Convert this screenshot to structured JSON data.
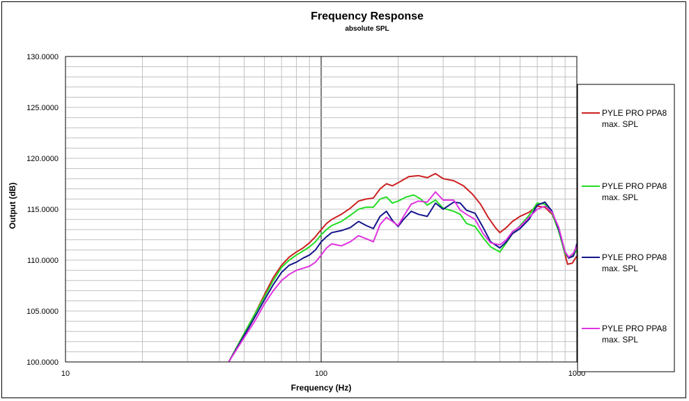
{
  "chart_data": {
    "type": "line",
    "title": "Frequency Response",
    "subtitle": "absolute SPL",
    "xlabel": "Frequency (Hz)",
    "ylabel": "Output (dB)",
    "x_scale": "log",
    "xlim": [
      10,
      1000
    ],
    "ylim": [
      100,
      130
    ],
    "x_ticks": [
      {
        "value": 10,
        "label": "10"
      },
      {
        "value": 100,
        "label": "100"
      },
      {
        "value": 1000,
        "label": "1000"
      }
    ],
    "y_ticks": [
      {
        "value": 100,
        "label": "100.0000"
      },
      {
        "value": 105,
        "label": "105.0000"
      },
      {
        "value": 110,
        "label": "110.0000"
      },
      {
        "value": 115,
        "label": "115.0000"
      },
      {
        "value": 120,
        "label": "120.0000"
      },
      {
        "value": 125,
        "label": "125.0000"
      },
      {
        "value": 130,
        "label": "130.0000"
      }
    ],
    "grid": true,
    "legend_position": "right",
    "series": [
      {
        "name": "PYLE PRO PPA8 max. SPL",
        "name_lines": [
          "PYLE PRO PPA8",
          "max. SPL"
        ],
        "color": "#cc1f1f",
        "points": [
          [
            43.5,
            100
          ],
          [
            50,
            102.8
          ],
          [
            55,
            104.7
          ],
          [
            60,
            106.6
          ],
          [
            65,
            108.3
          ],
          [
            70,
            109.5
          ],
          [
            75,
            110.3
          ],
          [
            80,
            110.8
          ],
          [
            85,
            111.2
          ],
          [
            90,
            111.7
          ],
          [
            95,
            112.3
          ],
          [
            100,
            113.0
          ],
          [
            105,
            113.6
          ],
          [
            110,
            114.0
          ],
          [
            120,
            114.5
          ],
          [
            130,
            115.1
          ],
          [
            140,
            115.8
          ],
          [
            150,
            116.0
          ],
          [
            160,
            116.1
          ],
          [
            170,
            117.0
          ],
          [
            180,
            117.5
          ],
          [
            190,
            117.3
          ],
          [
            200,
            117.6
          ],
          [
            210,
            117.9
          ],
          [
            220,
            118.2
          ],
          [
            240,
            118.3
          ],
          [
            260,
            118.1
          ],
          [
            280,
            118.5
          ],
          [
            300,
            118.0
          ],
          [
            330,
            117.8
          ],
          [
            360,
            117.3
          ],
          [
            390,
            116.5
          ],
          [
            420,
            115.5
          ],
          [
            450,
            114.2
          ],
          [
            480,
            113.2
          ],
          [
            500,
            112.7
          ],
          [
            530,
            113.2
          ],
          [
            560,
            113.8
          ],
          [
            600,
            114.3
          ],
          [
            650,
            114.7
          ],
          [
            700,
            115.3
          ],
          [
            750,
            115.2
          ],
          [
            800,
            114.5
          ],
          [
            850,
            113.0
          ],
          [
            900,
            110.5
          ],
          [
            920,
            109.6
          ],
          [
            960,
            109.7
          ],
          [
            1000,
            110.4
          ]
        ]
      },
      {
        "name": "PYLE PRO PPA8 max. SPL",
        "name_lines": [
          "PYLE PRO PPA8",
          "max. SPL"
        ],
        "color": "#22dd22",
        "points": [
          [
            43.5,
            100
          ],
          [
            50,
            102.8
          ],
          [
            55,
            104.7
          ],
          [
            60,
            106.4
          ],
          [
            65,
            108.0
          ],
          [
            70,
            109.3
          ],
          [
            75,
            110.0
          ],
          [
            80,
            110.5
          ],
          [
            85,
            110.9
          ],
          [
            90,
            111.3
          ],
          [
            95,
            111.8
          ],
          [
            100,
            112.5
          ],
          [
            105,
            113.0
          ],
          [
            110,
            113.4
          ],
          [
            120,
            113.8
          ],
          [
            130,
            114.4
          ],
          [
            140,
            115.0
          ],
          [
            150,
            115.2
          ],
          [
            160,
            115.2
          ],
          [
            170,
            116.0
          ],
          [
            180,
            116.2
          ],
          [
            190,
            115.6
          ],
          [
            200,
            115.8
          ],
          [
            215,
            116.2
          ],
          [
            230,
            116.4
          ],
          [
            245,
            116.0
          ],
          [
            260,
            115.4
          ],
          [
            280,
            115.9
          ],
          [
            300,
            115.1
          ],
          [
            330,
            114.8
          ],
          [
            350,
            114.5
          ],
          [
            370,
            113.6
          ],
          [
            400,
            113.3
          ],
          [
            430,
            112.2
          ],
          [
            460,
            111.3
          ],
          [
            500,
            110.8
          ],
          [
            530,
            111.7
          ],
          [
            560,
            112.6
          ],
          [
            600,
            113.4
          ],
          [
            650,
            114.4
          ],
          [
            700,
            115.6
          ],
          [
            750,
            115.5
          ],
          [
            800,
            114.6
          ],
          [
            850,
            112.8
          ],
          [
            900,
            110.6
          ],
          [
            930,
            110.2
          ],
          [
            970,
            110.5
          ],
          [
            1000,
            111.0
          ]
        ]
      },
      {
        "name": "PYLE PRO PPA8 max. SPL",
        "name_lines": [
          "PYLE PRO PPA8",
          "max. SPL"
        ],
        "color": "#14148c",
        "points": [
          [
            43.5,
            100
          ],
          [
            50,
            102.6
          ],
          [
            55,
            104.4
          ],
          [
            60,
            106.1
          ],
          [
            65,
            107.6
          ],
          [
            70,
            108.8
          ],
          [
            75,
            109.5
          ],
          [
            80,
            109.8
          ],
          [
            85,
            110.2
          ],
          [
            90,
            110.5
          ],
          [
            95,
            111.0
          ],
          [
            100,
            111.8
          ],
          [
            105,
            112.3
          ],
          [
            110,
            112.7
          ],
          [
            120,
            112.9
          ],
          [
            130,
            113.2
          ],
          [
            140,
            113.8
          ],
          [
            150,
            113.4
          ],
          [
            160,
            113.1
          ],
          [
            170,
            114.3
          ],
          [
            180,
            114.8
          ],
          [
            190,
            113.9
          ],
          [
            200,
            113.3
          ],
          [
            210,
            114.0
          ],
          [
            225,
            114.8
          ],
          [
            240,
            114.5
          ],
          [
            260,
            114.3
          ],
          [
            280,
            115.6
          ],
          [
            300,
            115.0
          ],
          [
            330,
            115.7
          ],
          [
            350,
            115.6
          ],
          [
            370,
            114.9
          ],
          [
            400,
            114.6
          ],
          [
            430,
            113.2
          ],
          [
            460,
            111.8
          ],
          [
            500,
            111.2
          ],
          [
            530,
            111.8
          ],
          [
            560,
            112.6
          ],
          [
            600,
            113.1
          ],
          [
            650,
            114.0
          ],
          [
            700,
            115.4
          ],
          [
            750,
            115.7
          ],
          [
            800,
            114.8
          ],
          [
            850,
            113.0
          ],
          [
            900,
            110.8
          ],
          [
            930,
            110.2
          ],
          [
            970,
            110.4
          ],
          [
            1000,
            111.6
          ]
        ]
      },
      {
        "name": "PYLE PRO PPA8 max. SPL",
        "name_lines": [
          "PYLE PRO PPA8",
          "max. SPL"
        ],
        "color": "#e033e0",
        "points": [
          [
            43.5,
            100
          ],
          [
            50,
            102.4
          ],
          [
            55,
            104.0
          ],
          [
            60,
            105.7
          ],
          [
            65,
            107.0
          ],
          [
            70,
            108.0
          ],
          [
            75,
            108.6
          ],
          [
            80,
            109.0
          ],
          [
            85,
            109.2
          ],
          [
            90,
            109.4
          ],
          [
            95,
            109.8
          ],
          [
            100,
            110.5
          ],
          [
            105,
            111.2
          ],
          [
            110,
            111.6
          ],
          [
            115,
            111.5
          ],
          [
            120,
            111.4
          ],
          [
            130,
            111.8
          ],
          [
            140,
            112.4
          ],
          [
            150,
            112.1
          ],
          [
            160,
            111.8
          ],
          [
            170,
            113.5
          ],
          [
            180,
            114.2
          ],
          [
            190,
            113.8
          ],
          [
            200,
            113.4
          ],
          [
            210,
            114.3
          ],
          [
            225,
            115.5
          ],
          [
            240,
            115.8
          ],
          [
            260,
            115.7
          ],
          [
            280,
            116.7
          ],
          [
            300,
            115.9
          ],
          [
            330,
            115.9
          ],
          [
            350,
            114.9
          ],
          [
            370,
            114.5
          ],
          [
            400,
            114.0
          ],
          [
            430,
            112.6
          ],
          [
            460,
            111.7
          ],
          [
            500,
            111.5
          ],
          [
            530,
            112.0
          ],
          [
            560,
            112.8
          ],
          [
            600,
            113.3
          ],
          [
            650,
            114.2
          ],
          [
            700,
            115.0
          ],
          [
            750,
            115.3
          ],
          [
            800,
            114.7
          ],
          [
            850,
            113.2
          ],
          [
            900,
            110.8
          ],
          [
            930,
            110.3
          ],
          [
            970,
            110.7
          ],
          [
            1000,
            111.4
          ]
        ]
      }
    ]
  }
}
